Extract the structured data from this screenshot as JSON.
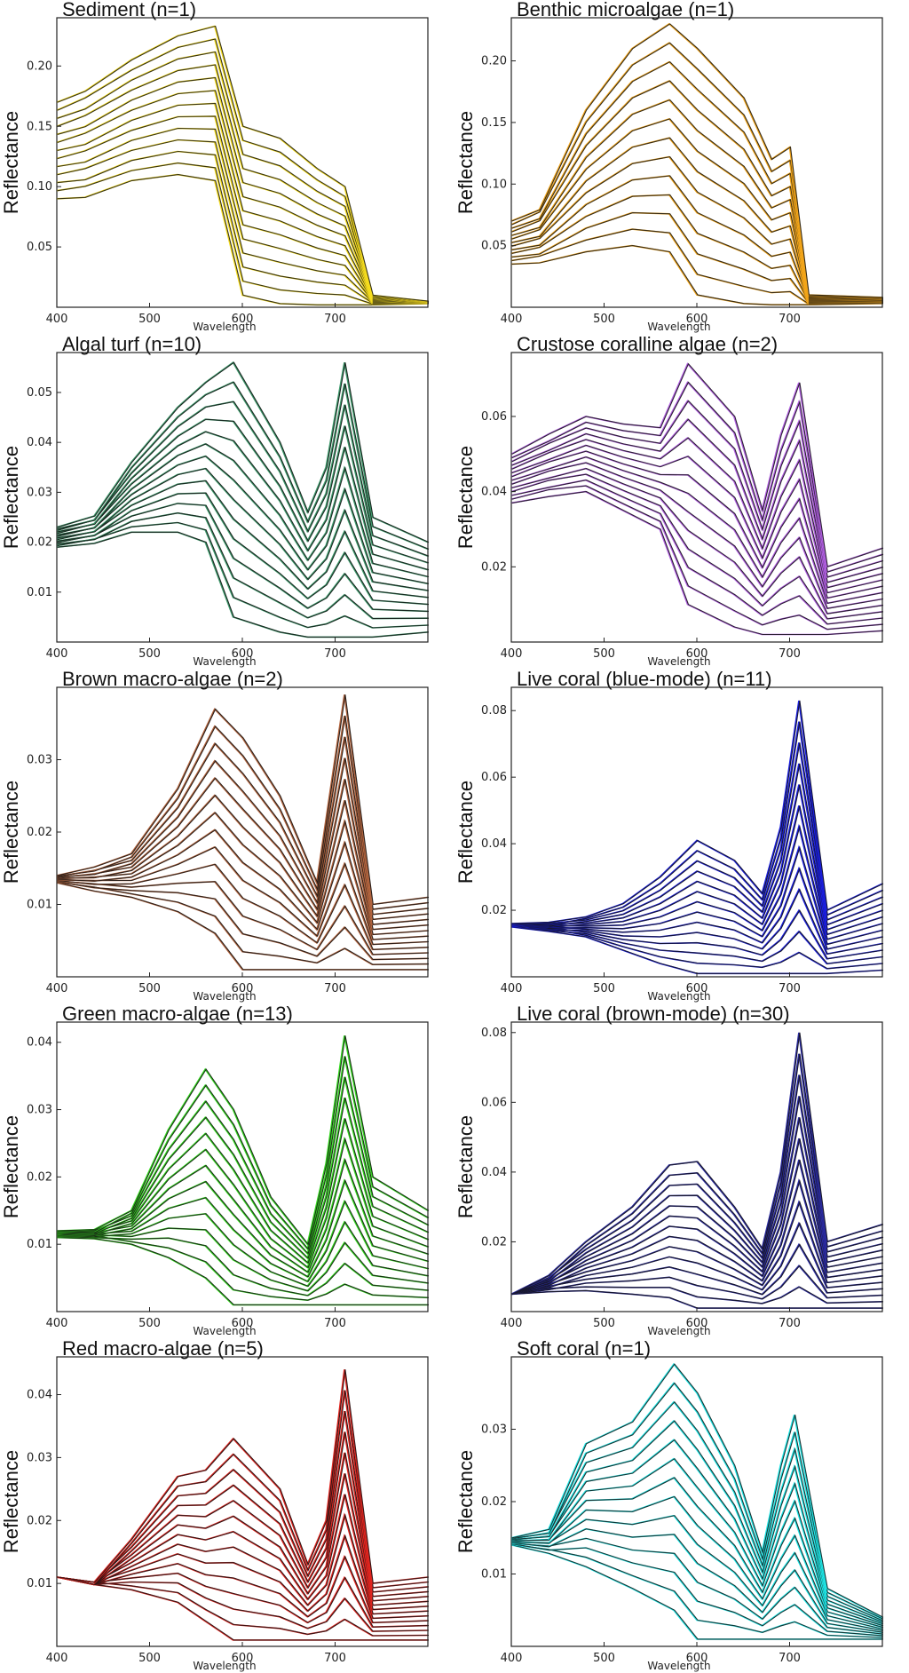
{
  "figure": {
    "xlabel": "Wavelength",
    "ylabel": "Reflectance"
  },
  "chart_data": [
    {
      "id": "sediment",
      "type": "line",
      "title": "Sediment (n=1)",
      "color": "#f5dc1e",
      "xlabel": "Wavelength",
      "ylabel": "Reflectance",
      "x_ticks": [
        "400",
        "500",
        "600",
        "700"
      ],
      "y_ticks": [
        "0.05",
        "0.10",
        "0.15",
        "0.20"
      ],
      "xlim": [
        400,
        800
      ],
      "ylim": [
        0,
        0.24
      ],
      "n_curves": 13,
      "x": [
        400,
        430,
        480,
        530,
        570,
        600,
        640,
        680,
        710,
        740,
        800
      ],
      "outer_top": [
        0.17,
        0.18,
        0.205,
        0.225,
        0.233,
        0.15,
        0.14,
        0.115,
        0.1,
        0.01,
        0.005
      ],
      "outer_bottom": [
        0.09,
        0.092,
        0.105,
        0.11,
        0.105,
        0.01,
        0.003,
        0.002,
        0.002,
        0.002,
        0.003
      ]
    },
    {
      "id": "benthic",
      "type": "line",
      "title": "Benthic microalgae (n=1)",
      "color": "#f2a51a",
      "xlabel": "Wavelength",
      "ylabel": "Reflectance",
      "x_ticks": [
        "400",
        "500",
        "600",
        "700"
      ],
      "y_ticks": [
        "0.05",
        "0.10",
        "0.15",
        "0.20"
      ],
      "xlim": [
        400,
        800
      ],
      "ylim": [
        0,
        0.235
      ],
      "n_curves": 13,
      "x": [
        400,
        430,
        480,
        530,
        570,
        600,
        650,
        680,
        700,
        720,
        800
      ],
      "outer_top": [
        0.07,
        0.08,
        0.16,
        0.21,
        0.23,
        0.21,
        0.17,
        0.12,
        0.13,
        0.01,
        0.008
      ],
      "outer_bottom": [
        0.035,
        0.037,
        0.045,
        0.05,
        0.045,
        0.01,
        0.003,
        0.002,
        0.002,
        0.002,
        0.003
      ]
    },
    {
      "id": "algal-turf",
      "type": "line",
      "title": "Algal turf (n=10)",
      "color": "#3e9a6c",
      "xlabel": "Wavelength",
      "ylabel": "Reflectance",
      "x_ticks": [
        "400",
        "500",
        "600",
        "700"
      ],
      "y_ticks": [
        "0.01",
        "0.02",
        "0.03",
        "0.04",
        "0.05"
      ],
      "xlim": [
        400,
        800
      ],
      "ylim": [
        0,
        0.058
      ],
      "n_curves": 14,
      "x": [
        400,
        440,
        480,
        530,
        560,
        590,
        640,
        670,
        690,
        710,
        740,
        800
      ],
      "outer_top": [
        0.023,
        0.025,
        0.036,
        0.047,
        0.052,
        0.056,
        0.04,
        0.026,
        0.035,
        0.056,
        0.025,
        0.02
      ],
      "outer_bottom": [
        0.019,
        0.02,
        0.022,
        0.022,
        0.02,
        0.005,
        0.002,
        0.001,
        0.001,
        0.001,
        0.001,
        0.002
      ]
    },
    {
      "id": "cca",
      "type": "line",
      "title": "Crustose coralline algae (n=2)",
      "color": "#b05ee0",
      "xlabel": "Wavelength",
      "ylabel": "Reflectance",
      "x_ticks": [
        "400",
        "500",
        "600",
        "700"
      ],
      "y_ticks": [
        "0.02",
        "0.04",
        "0.06"
      ],
      "xlim": [
        400,
        800
      ],
      "ylim": [
        0,
        0.077
      ],
      "n_curves": 14,
      "x": [
        400,
        440,
        480,
        520,
        560,
        590,
        640,
        670,
        690,
        710,
        740,
        800
      ],
      "outer_top": [
        0.05,
        0.055,
        0.06,
        0.058,
        0.057,
        0.074,
        0.06,
        0.035,
        0.055,
        0.069,
        0.02,
        0.025
      ],
      "outer_bottom": [
        0.037,
        0.039,
        0.04,
        0.035,
        0.03,
        0.01,
        0.004,
        0.002,
        0.002,
        0.002,
        0.002,
        0.003
      ]
    },
    {
      "id": "brown-macro",
      "type": "line",
      "title": "Brown macro-algae (n=2)",
      "color": "#b2643e",
      "xlabel": "Wavelength",
      "ylabel": "Reflectance",
      "x_ticks": [
        "400",
        "500",
        "600",
        "700"
      ],
      "y_ticks": [
        "0.01",
        "0.02",
        "0.03"
      ],
      "xlim": [
        400,
        800
      ],
      "ylim": [
        0,
        0.04
      ],
      "n_curves": 14,
      "x": [
        400,
        440,
        480,
        530,
        570,
        600,
        640,
        680,
        710,
        740,
        800
      ],
      "outer_top": [
        0.014,
        0.015,
        0.017,
        0.026,
        0.037,
        0.033,
        0.025,
        0.013,
        0.039,
        0.01,
        0.011
      ],
      "outer_bottom": [
        0.013,
        0.012,
        0.011,
        0.009,
        0.006,
        0.001,
        0.001,
        0.001,
        0.001,
        0.001,
        0.001
      ]
    },
    {
      "id": "coral-blue",
      "type": "line",
      "title": "Live coral (blue-mode) (n=11)",
      "color": "#1a1ee0",
      "xlabel": "Wavelength",
      "ylabel": "Reflectance",
      "x_ticks": [
        "400",
        "500",
        "600",
        "700"
      ],
      "y_ticks": [
        "0.02",
        "0.04",
        "0.06",
        "0.08"
      ],
      "xlim": [
        400,
        800
      ],
      "ylim": [
        0,
        0.087
      ],
      "n_curves": 14,
      "x": [
        400,
        440,
        480,
        520,
        560,
        600,
        640,
        670,
        690,
        710,
        740,
        800
      ],
      "outer_top": [
        0.016,
        0.016,
        0.018,
        0.022,
        0.03,
        0.041,
        0.035,
        0.025,
        0.045,
        0.083,
        0.02,
        0.028
      ],
      "outer_bottom": [
        0.015,
        0.014,
        0.012,
        0.008,
        0.004,
        0.001,
        0.001,
        0.001,
        0.001,
        0.001,
        0.001,
        0.002
      ]
    },
    {
      "id": "green-macro",
      "type": "line",
      "title": "Green macro-algae (n=13)",
      "color": "#33d81e",
      "xlabel": "Wavelength",
      "ylabel": "Reflectance",
      "x_ticks": [
        "400",
        "500",
        "600",
        "700"
      ],
      "y_ticks": [
        "0.01",
        "0.02",
        "0.03",
        "0.04"
      ],
      "xlim": [
        400,
        800
      ],
      "ylim": [
        0,
        0.043
      ],
      "n_curves": 14,
      "x": [
        400,
        440,
        480,
        520,
        560,
        590,
        630,
        670,
        690,
        710,
        740,
        800
      ],
      "outer_top": [
        0.012,
        0.012,
        0.015,
        0.027,
        0.036,
        0.03,
        0.017,
        0.01,
        0.022,
        0.041,
        0.02,
        0.015
      ],
      "outer_bottom": [
        0.011,
        0.011,
        0.01,
        0.008,
        0.005,
        0.001,
        0.001,
        0.001,
        0.001,
        0.001,
        0.001,
        0.001
      ]
    },
    {
      "id": "coral-brown",
      "type": "line",
      "title": "Live coral (brown-mode) (n=30)",
      "color": "#2a2aa0",
      "xlabel": "Wavelength",
      "ylabel": "Reflectance",
      "x_ticks": [
        "400",
        "500",
        "600",
        "700"
      ],
      "y_ticks": [
        "0.02",
        "0.04",
        "0.06",
        "0.08"
      ],
      "xlim": [
        400,
        800
      ],
      "ylim": [
        0,
        0.083
      ],
      "n_curves": 14,
      "x": [
        400,
        440,
        480,
        530,
        570,
        600,
        640,
        670,
        690,
        710,
        740,
        800
      ],
      "outer_top": [
        0.005,
        0.01,
        0.02,
        0.03,
        0.042,
        0.043,
        0.03,
        0.018,
        0.04,
        0.08,
        0.02,
        0.025
      ],
      "outer_bottom": [
        0.005,
        0.006,
        0.006,
        0.005,
        0.004,
        0.001,
        0.001,
        0.001,
        0.001,
        0.001,
        0.001,
        0.001
      ]
    },
    {
      "id": "red-macro",
      "type": "line",
      "title": "Red macro-algae (n=5)",
      "color": "#e0241e",
      "xlabel": "Wavelength",
      "ylabel": "Reflectance",
      "x_ticks": [
        "400",
        "500",
        "600",
        "700"
      ],
      "y_ticks": [
        "0.01",
        "0.02",
        "0.03",
        "0.04"
      ],
      "xlim": [
        400,
        800
      ],
      "ylim": [
        0,
        0.046
      ],
      "n_curves": 14,
      "x": [
        400,
        440,
        480,
        530,
        560,
        590,
        640,
        670,
        690,
        710,
        740,
        800
      ],
      "outer_top": [
        0.011,
        0.01,
        0.017,
        0.027,
        0.028,
        0.033,
        0.025,
        0.013,
        0.02,
        0.044,
        0.01,
        0.011
      ],
      "outer_bottom": [
        0.011,
        0.01,
        0.009,
        0.007,
        0.004,
        0.001,
        0.001,
        0.001,
        0.001,
        0.001,
        0.001,
        0.001
      ]
    },
    {
      "id": "soft-coral",
      "type": "line",
      "title": "Soft coral (n=1)",
      "color": "#1ee6e6",
      "xlabel": "Wavelength",
      "ylabel": "Reflectance",
      "x_ticks": [
        "400",
        "500",
        "600",
        "700"
      ],
      "y_ticks": [
        "0.01",
        "0.02",
        "0.03"
      ],
      "xlim": [
        400,
        800
      ],
      "ylim": [
        0,
        0.04
      ],
      "n_curves": 14,
      "x": [
        400,
        440,
        480,
        530,
        575,
        600,
        640,
        670,
        690,
        705,
        740,
        800
      ],
      "outer_top": [
        0.015,
        0.016,
        0.028,
        0.031,
        0.039,
        0.035,
        0.025,
        0.013,
        0.025,
        0.032,
        0.008,
        0.004
      ],
      "outer_bottom": [
        0.014,
        0.013,
        0.011,
        0.008,
        0.005,
        0.001,
        0.001,
        0.001,
        0.001,
        0.001,
        0.001,
        0.001
      ]
    }
  ]
}
